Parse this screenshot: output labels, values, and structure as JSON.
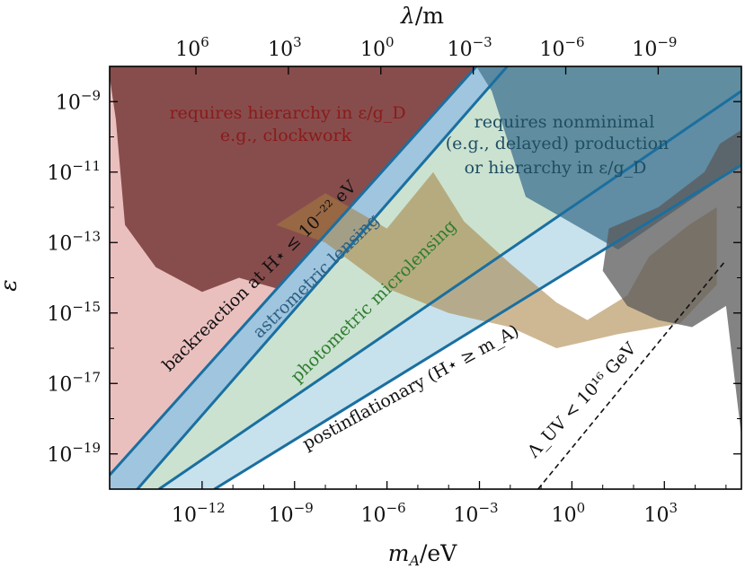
{
  "chart_data": {
    "type": "area",
    "title": "",
    "xlabel": "m_A/eV",
    "ylabel": "ε",
    "top_xlabel": "λ/m",
    "xlim_log10": [
      -15.0,
      5.5
    ],
    "ylim_log10": [
      -20.0,
      -8.0
    ],
    "x_ticks": [
      {
        "value": -12,
        "label": "10−12",
        "base": "10",
        "exp": "−12"
      },
      {
        "value": -9,
        "label": "10−9",
        "base": "10",
        "exp": "−9"
      },
      {
        "value": -6,
        "label": "10−6",
        "base": "10",
        "exp": "−6"
      },
      {
        "value": -3,
        "label": "10−3",
        "base": "10",
        "exp": "−3"
      },
      {
        "value": 0,
        "label": "100",
        "base": "10",
        "exp": "0"
      },
      {
        "value": 3,
        "label": "103",
        "base": "10",
        "exp": "3"
      }
    ],
    "y_ticks": [
      {
        "value": -9,
        "label": "10−9",
        "base": "10",
        "exp": "−9"
      },
      {
        "value": -11,
        "label": "10−11",
        "base": "10",
        "exp": "−11"
      },
      {
        "value": -13,
        "label": "10−13",
        "base": "10",
        "exp": "−13"
      },
      {
        "value": -15,
        "label": "10−15",
        "base": "10",
        "exp": "−15"
      },
      {
        "value": -17,
        "label": "10−17",
        "base": "10",
        "exp": "−17"
      },
      {
        "value": -19,
        "label": "10−19",
        "base": "10",
        "exp": "−19"
      }
    ],
    "top_ticks": [
      {
        "mass_log10": -12.2,
        "label": "106",
        "base": "10",
        "exp": "6"
      },
      {
        "mass_log10": -9.2,
        "label": "103",
        "base": "10",
        "exp": "3"
      },
      {
        "mass_log10": -6.2,
        "label": "100",
        "base": "10",
        "exp": "0"
      },
      {
        "mass_log10": -3.2,
        "label": "10−3",
        "base": "10",
        "exp": "−3"
      },
      {
        "mass_log10": -0.2,
        "label": "10−6",
        "base": "10",
        "exp": "−6"
      },
      {
        "mass_log10": 2.8,
        "label": "10−9",
        "base": "10",
        "exp": "−9"
      }
    ],
    "boundary_lines": [
      {
        "name": "backreaction-line",
        "points": [
          [
            -15.0,
            -19.6
          ],
          [
            -3.1,
            -8.0
          ]
        ]
      },
      {
        "name": "astrometric-upper-line",
        "points": [
          [
            -14.1,
            -20.0
          ],
          [
            -2.1,
            -8.0
          ]
        ]
      },
      {
        "name": "postinflationary-line",
        "points": [
          [
            -11.6,
            -20.0
          ],
          [
            5.5,
            -10.8
          ]
        ]
      },
      {
        "name": "lower-blue-line",
        "points": [
          [
            -13.4,
            -20.0
          ],
          [
            5.5,
            -8.7
          ]
        ]
      }
    ],
    "dashed_line": {
      "name": "uv-cutoff-line",
      "points": [
        [
          -1.1,
          -20.0
        ],
        [
          5.0,
          -13.5
        ]
      ]
    },
    "regions": [
      {
        "name": "backreaction-region",
        "color": "#d98c8a",
        "opacity": 0.55,
        "points": [
          [
            -15.0,
            -19.6
          ],
          [
            -3.1,
            -8.0
          ],
          [
            -15.0,
            -8.0
          ]
        ]
      },
      {
        "name": "astrometric-lensing-band",
        "color": "#5f9fc9",
        "opacity": 0.6,
        "points": [
          [
            -15.0,
            -19.6
          ],
          [
            -3.1,
            -8.0
          ],
          [
            -2.1,
            -8.0
          ],
          [
            -14.1,
            -20.0
          ],
          [
            -15.0,
            -20.0
          ]
        ]
      },
      {
        "name": "photometric-microlensing-band",
        "color": "#a9cfb0",
        "opacity": 0.6,
        "points": [
          [
            -14.1,
            -20.0
          ],
          [
            -2.1,
            -8.0
          ],
          [
            5.5,
            -8.0
          ],
          [
            5.5,
            -8.7
          ],
          [
            -13.4,
            -20.0
          ]
        ]
      },
      {
        "name": "postinflationary-band",
        "color": "#b9dbe8",
        "opacity": 0.8,
        "points": [
          [
            -13.4,
            -20.0
          ],
          [
            5.5,
            -8.7
          ],
          [
            5.5,
            -10.8
          ],
          [
            -11.6,
            -20.0
          ]
        ]
      },
      {
        "name": "nonminimal-region",
        "color": "#4d7e96",
        "opacity": 0.85,
        "points": [
          [
            -3.1,
            -8.0
          ],
          [
            5.5,
            -8.0
          ],
          [
            5.5,
            -10.8
          ],
          [
            1.5,
            -13.2
          ],
          [
            -1.5,
            -11.7
          ],
          [
            -2.6,
            -8.7
          ]
        ]
      }
    ],
    "constraint_curves": [
      {
        "name": "hierarchy-constraint",
        "color": "#6e3030",
        "opacity": 0.8,
        "points": [
          [
            -15.0,
            -8.0
          ],
          [
            -3.1,
            -8.0
          ],
          [
            -9.6,
            -14.3
          ],
          [
            -10.8,
            -14.0
          ],
          [
            -12.0,
            -14.4
          ],
          [
            -13.5,
            -13.7
          ],
          [
            -14.5,
            -12.5
          ],
          [
            -14.8,
            -9.5
          ],
          [
            -15.0,
            -8.3
          ]
        ]
      },
      {
        "name": "intermediate-constraints",
        "color": "#a67d3d",
        "opacity": 0.55,
        "points": [
          [
            -9.6,
            -12.5
          ],
          [
            -8.0,
            -11.6
          ],
          [
            -6.0,
            -12.6
          ],
          [
            -4.5,
            -11.0
          ],
          [
            -3.5,
            -12.4
          ],
          [
            -2.0,
            -13.6
          ],
          [
            -0.5,
            -14.7
          ],
          [
            0.5,
            -15.2
          ],
          [
            1.8,
            -14.5
          ],
          [
            2.5,
            -13.4
          ],
          [
            3.8,
            -12.5
          ],
          [
            4.7,
            -12.0
          ],
          [
            4.7,
            -14.2
          ],
          [
            3.5,
            -15.3
          ],
          [
            1.5,
            -15.6
          ],
          [
            -0.5,
            -16.0
          ],
          [
            -2.0,
            -15.4
          ],
          [
            -4.0,
            -15.0
          ],
          [
            -6.0,
            -14.3
          ],
          [
            -8.0,
            -13.0
          ]
        ]
      },
      {
        "name": "gray-constraint",
        "color": "#5a5a5a",
        "opacity": 0.75,
        "points": [
          [
            1.2,
            -12.6
          ],
          [
            2.8,
            -12.0
          ],
          [
            4.3,
            -11.0
          ],
          [
            4.8,
            -10.2
          ],
          [
            5.5,
            -9.8
          ],
          [
            5.5,
            -18.5
          ],
          [
            5.0,
            -14.8
          ],
          [
            3.9,
            -15.4
          ],
          [
            2.8,
            -15.2
          ],
          [
            1.8,
            -14.8
          ],
          [
            1.0,
            -13.8
          ]
        ]
      }
    ],
    "annotations": {
      "hierarchy_line1": "requires hierarchy in ε/g_D",
      "hierarchy_line2": "e.g., clockwork",
      "nonminimal_line1": "requires nonminimal",
      "nonminimal_line2": "(e.g., delayed) production",
      "nonminimal_line3": "or hierarchy in ε/g_D",
      "backreaction": "backreaction at H⋆ ≤ 10⁻²² eV",
      "astrometric": "astrometric lensing",
      "photometric": "photometric microlensing",
      "postinflationary": "postinflationary (H⋆ ≥ m_A)",
      "uv_cutoff": "Λ_UV < 10¹⁶ GeV"
    },
    "annotation_colors": {
      "hierarchy": "#8b1a1a",
      "nonminimal": "#1f4e63",
      "backreaction": "#111111",
      "astrometric": "#2e5f80",
      "photometric": "#2e7d2e",
      "postinflationary": "#111111",
      "uv_cutoff": "#111111"
    },
    "line_colors": {
      "boundary": "#1a6fa0",
      "dashed": "#111111",
      "frame": "#000000"
    }
  }
}
